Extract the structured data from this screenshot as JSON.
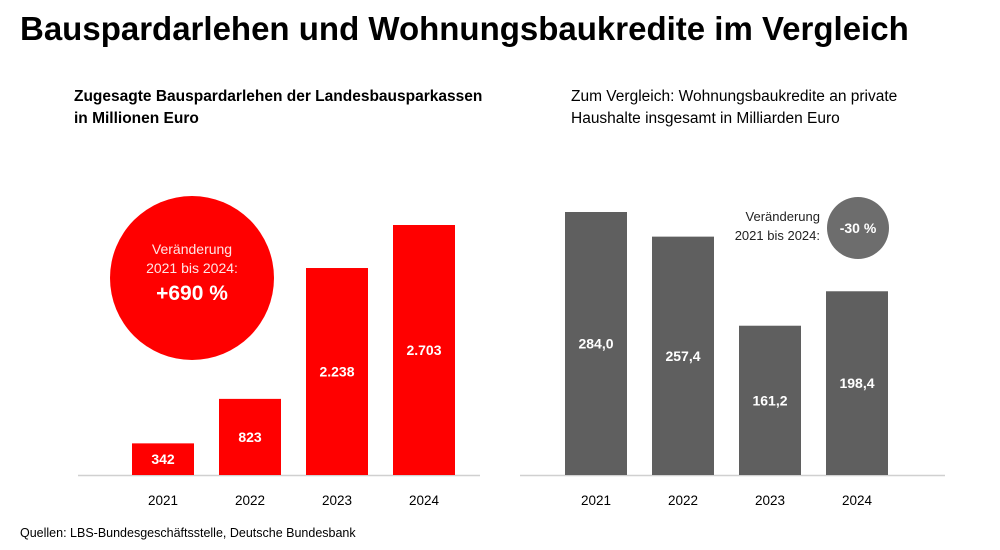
{
  "title": "Bauspardarlehen und Wohnungsbaukredite im Vergleich",
  "source": "Quellen: LBS-Bundesgeschäftsstelle, Deutsche Bundesbank",
  "colors": {
    "left_bars": "#ff0000",
    "right_bars": "#5f5f5f",
    "axis": "#d0d0d0"
  },
  "chart_data": [
    {
      "type": "bar",
      "subtitle": "Zugesagte Bauspardarlehen der Landesbausparkassen\nin Millionen Euro",
      "categories": [
        "2021",
        "2022",
        "2023",
        "2024"
      ],
      "values": [
        342,
        823,
        2238,
        2703
      ],
      "value_labels": [
        "342",
        "823",
        "2.238",
        "2.703"
      ],
      "change_label_1": "Veränderung",
      "change_label_2": "2021 bis 2024:",
      "change_value": "+690 %"
    },
    {
      "type": "bar",
      "subtitle": "Zum Vergleich: Wohnungsbaukredite an private\nHaushalte insgesamt in Milliarden Euro",
      "categories": [
        "2021",
        "2022",
        "2023",
        "2024"
      ],
      "values": [
        284.0,
        257.4,
        161.2,
        198.4
      ],
      "value_labels": [
        "284,0",
        "257,4",
        "161,2",
        "198,4"
      ],
      "change_label_1": "Veränderung",
      "change_label_2": "2021 bis 2024:",
      "change_value": "-30 %"
    }
  ]
}
